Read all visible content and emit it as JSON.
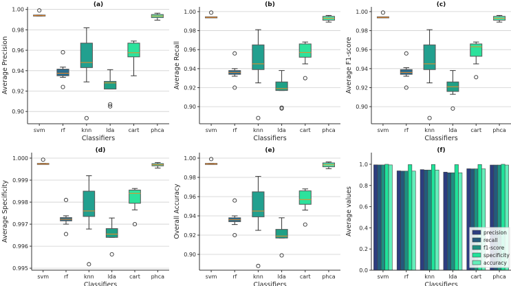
{
  "chart_data": [
    {
      "type": "box",
      "panel": "(a)",
      "title": "(a)",
      "xlabel": "Classifiers",
      "ylabel": "Average Precision",
      "ylim": [
        0.888,
        1.0025
      ],
      "ticks": [
        0.9,
        0.92,
        0.94,
        0.96,
        0.98,
        1.0
      ],
      "tick_labels": [
        "0.90",
        "0.92",
        "0.94",
        "0.96",
        "0.98",
        "1.00"
      ],
      "grid": true,
      "categories": [
        "svm",
        "rf",
        "knn",
        "lda",
        "cart",
        "phca"
      ],
      "boxes": [
        {
          "q1": 0.9935,
          "med": 0.994,
          "q3": 0.9945,
          "lo": 0.9935,
          "hi": 0.9945,
          "out": [
            0.999
          ]
        },
        {
          "q1": 0.935,
          "med": 0.9375,
          "q3": 0.9415,
          "lo": 0.9335,
          "hi": 0.9435,
          "out": [
            0.958,
            0.924
          ]
        },
        {
          "q1": 0.943,
          "med": 0.948,
          "q3": 0.967,
          "lo": 0.929,
          "hi": 0.982,
          "out": [
            0.8935
          ]
        },
        {
          "q1": 0.922,
          "med": 0.928,
          "q3": 0.9295,
          "lo": 0.922,
          "hi": 0.941,
          "out": [
            0.907,
            0.905
          ]
        },
        {
          "q1": 0.9535,
          "med": 0.9575,
          "q3": 0.967,
          "lo": 0.935,
          "hi": 0.969,
          "out": []
        },
        {
          "q1": 0.992,
          "med": 0.9935,
          "q3": 0.995,
          "lo": 0.9895,
          "hi": 0.9963,
          "out": []
        }
      ]
    },
    {
      "type": "box",
      "panel": "(b)",
      "title": "(b)",
      "xlabel": "Classifiers",
      "ylabel": "Average Recall",
      "ylim": [
        0.882,
        1.005
      ],
      "ticks": [
        0.9,
        0.92,
        0.94,
        0.96,
        0.98,
        1.0
      ],
      "tick_labels": [
        "0.90",
        "0.92",
        "0.94",
        "0.96",
        "0.98",
        "1.00"
      ],
      "grid": true,
      "categories": [
        "svm",
        "rf",
        "knn",
        "lda",
        "cart",
        "phca"
      ],
      "boxes": [
        {
          "q1": 0.9935,
          "med": 0.994,
          "q3": 0.9945,
          "lo": 0.9935,
          "hi": 0.9945,
          "out": [
            0.999
          ]
        },
        {
          "q1": 0.934,
          "med": 0.936,
          "q3": 0.938,
          "lo": 0.932,
          "hi": 0.94,
          "out": [
            0.956,
            0.92
          ]
        },
        {
          "q1": 0.939,
          "med": 0.945,
          "q3": 0.965,
          "lo": 0.925,
          "hi": 0.981,
          "out": [
            0.888
          ]
        },
        {
          "q1": 0.917,
          "med": 0.919,
          "q3": 0.926,
          "lo": 0.917,
          "hi": 0.938,
          "out": [
            0.899,
            0.898
          ]
        },
        {
          "q1": 0.952,
          "med": 0.957,
          "q3": 0.966,
          "lo": 0.945,
          "hi": 0.968,
          "out": [
            0.93
          ]
        },
        {
          "q1": 0.991,
          "med": 0.993,
          "q3": 0.995,
          "lo": 0.989,
          "hi": 0.996,
          "out": []
        }
      ]
    },
    {
      "type": "box",
      "panel": "(c)",
      "title": "(c)",
      "xlabel": "Classifiers",
      "ylabel": "Average F1-score",
      "ylim": [
        0.882,
        1.005
      ],
      "ticks": [
        0.9,
        0.92,
        0.94,
        0.96,
        0.98,
        1.0
      ],
      "tick_labels": [
        "0.90",
        "0.92",
        "0.94",
        "0.96",
        "0.98",
        "1.00"
      ],
      "grid": true,
      "categories": [
        "svm",
        "rf",
        "knn",
        "lda",
        "cart",
        "phca"
      ],
      "boxes": [
        {
          "q1": 0.9935,
          "med": 0.994,
          "q3": 0.9945,
          "lo": 0.9935,
          "hi": 0.9945,
          "out": [
            0.999
          ]
        },
        {
          "q1": 0.934,
          "med": 0.936,
          "q3": 0.939,
          "lo": 0.932,
          "hi": 0.941,
          "out": [
            0.956,
            0.92
          ]
        },
        {
          "q1": 0.939,
          "med": 0.945,
          "q3": 0.965,
          "lo": 0.925,
          "hi": 0.981,
          "out": [
            0.888
          ]
        },
        {
          "q1": 0.916,
          "med": 0.921,
          "q3": 0.926,
          "lo": 0.913,
          "hi": 0.938,
          "out": [
            0.898
          ]
        },
        {
          "q1": 0.953,
          "med": 0.963,
          "q3": 0.966,
          "lo": 0.945,
          "hi": 0.968,
          "out": [
            0.931
          ]
        },
        {
          "q1": 0.991,
          "med": 0.993,
          "q3": 0.995,
          "lo": 0.989,
          "hi": 0.996,
          "out": []
        }
      ]
    },
    {
      "type": "box",
      "panel": "(d)",
      "title": "(d)",
      "xlabel": "Classifiers",
      "ylabel": "Average Specificity",
      "ylim": [
        0.99491,
        1.00025
      ],
      "ticks": [
        0.995,
        0.996,
        0.997,
        0.998,
        0.999,
        1.0
      ],
      "tick_labels": [
        "0.995",
        "0.996",
        "0.997",
        "0.998",
        "0.999",
        "1.000"
      ],
      "grid": true,
      "categories": [
        "svm",
        "rf",
        "knn",
        "lda",
        "cart",
        "phca"
      ],
      "boxes": [
        {
          "q1": 0.99972,
          "med": 0.99974,
          "q3": 0.99976,
          "lo": 0.99972,
          "hi": 0.99976,
          "out": [
            0.99993
          ]
        },
        {
          "q1": 0.99715,
          "med": 0.99722,
          "q3": 0.9973,
          "lo": 0.997,
          "hi": 0.99738,
          "out": [
            0.9981,
            0.99655
          ]
        },
        {
          "q1": 0.99735,
          "med": 0.9976,
          "q3": 0.9985,
          "lo": 0.99678,
          "hi": 0.9992,
          "out": [
            0.99518
          ]
        },
        {
          "q1": 0.9964,
          "med": 0.99655,
          "q3": 0.9968,
          "lo": 0.9964,
          "hi": 0.99728,
          "out": [
            0.99563
          ]
        },
        {
          "q1": 0.99795,
          "med": 0.9984,
          "q3": 0.99855,
          "lo": 0.99765,
          "hi": 0.99862,
          "out": [
            0.997
          ]
        },
        {
          "q1": 0.99965,
          "med": 0.9997,
          "q3": 0.99975,
          "lo": 0.99955,
          "hi": 0.9998,
          "out": []
        }
      ]
    },
    {
      "type": "box",
      "panel": "(e)",
      "title": "(e)",
      "xlabel": "Classifiers",
      "ylabel": "Overall Accuracy",
      "ylim": [
        0.8836,
        1.0057
      ],
      "ticks": [
        0.9,
        0.92,
        0.94,
        0.96,
        0.98,
        1.0
      ],
      "tick_labels": [
        "0.90",
        "0.92",
        "0.94",
        "0.96",
        "0.98",
        "1.00"
      ],
      "grid": true,
      "categories": [
        "svm",
        "rf",
        "knn",
        "lda",
        "cart",
        "phca"
      ],
      "boxes": [
        {
          "q1": 0.9935,
          "med": 0.994,
          "q3": 0.9945,
          "lo": 0.9935,
          "hi": 0.9945,
          "out": [
            0.999
          ]
        },
        {
          "q1": 0.934,
          "med": 0.936,
          "q3": 0.938,
          "lo": 0.931,
          "hi": 0.94,
          "out": [
            0.956,
            0.92
          ]
        },
        {
          "q1": 0.939,
          "med": 0.945,
          "q3": 0.965,
          "lo": 0.925,
          "hi": 0.981,
          "out": [
            0.888
          ]
        },
        {
          "q1": 0.917,
          "med": 0.919,
          "q3": 0.926,
          "lo": 0.917,
          "hi": 0.938,
          "out": [
            0.899
          ]
        },
        {
          "q1": 0.952,
          "med": 0.957,
          "q3": 0.966,
          "lo": 0.946,
          "hi": 0.968,
          "out": [
            0.931
          ]
        },
        {
          "q1": 0.991,
          "med": 0.993,
          "q3": 0.995,
          "lo": 0.989,
          "hi": 0.996,
          "out": []
        }
      ]
    },
    {
      "type": "bar",
      "panel": "(f)",
      "title": "(f)",
      "xlabel": "Classifiers",
      "ylabel": "Average values",
      "ylim": [
        0,
        1.11
      ],
      "ticks": [
        0,
        0.2,
        0.4,
        0.6,
        0.8,
        1.0
      ],
      "tick_labels": [
        "0.0",
        "0.2",
        "0.4",
        "0.6",
        "0.8",
        "1.0"
      ],
      "grid": false,
      "legend_position": "bottom-right",
      "categories": [
        "svm",
        "rf",
        "knn",
        "lda",
        "cart",
        "phca"
      ],
      "series": [
        {
          "name": "precision",
          "color": "#2c3d80",
          "values": [
            0.995,
            0.938,
            0.95,
            0.926,
            0.958,
            0.993
          ]
        },
        {
          "name": "recall",
          "color": "#245a7c",
          "values": [
            0.994,
            0.936,
            0.946,
            0.92,
            0.957,
            0.993
          ]
        },
        {
          "name": "f1-score",
          "color": "#1e9080",
          "values": [
            0.994,
            0.936,
            0.946,
            0.92,
            0.957,
            0.993
          ]
        },
        {
          "name": "specificity",
          "color": "#1fe39a",
          "values": [
            1.0,
            0.997,
            0.998,
            0.997,
            0.998,
            1.0
          ]
        },
        {
          "name": "accuracy",
          "color": "#64efbb",
          "values": [
            0.994,
            0.936,
            0.946,
            0.92,
            0.957,
            0.993
          ]
        }
      ]
    }
  ],
  "box_colors": [
    "#343f8c",
    "#2a6c8e",
    "#22a08f",
    "#1fa086",
    "#2de29c",
    "#45e8ae"
  ],
  "median_color": "#f08a24"
}
